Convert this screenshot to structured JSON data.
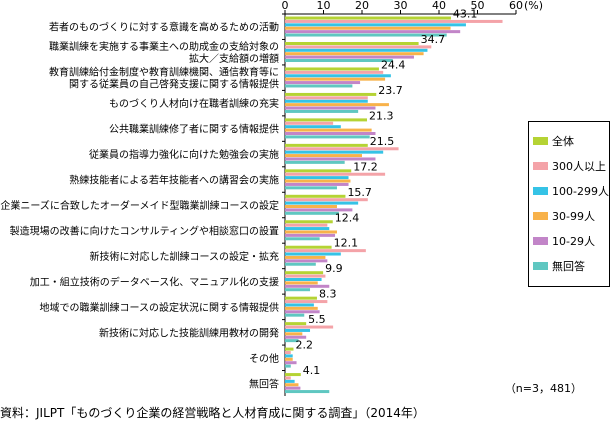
{
  "chart_data": {
    "type": "bar",
    "orientation": "horizontal",
    "categories": [
      "若者のものづくりに対する意識を高めるための活動",
      "職業訓練を実施する事業主への助成金の支給対象の\n拡大／支給額の増額",
      "教育訓練給付金制度や教育訓練機関、通信教育等に\n関する従業員の自己啓発支援に関する情報提供",
      "ものづくり人材向け在職者訓練の充実",
      "公共職業訓練修了者に関する情報提供",
      "従業員の指導力強化に向けた勉強会の実施",
      "熟練技能者による若年技能者への講習会の実施",
      "企業ニーズに合致したオーダーメイド型職業訓練コースの設定",
      "製造現場の改善に向けたコンサルティングや相談窓口の設置",
      "新技術に対応した訓練コースの設定・拡充",
      "加工・組立技術のデータベース化、マニュアル化の支援",
      "地域での職業訓練コースの設定状況に関する情報提供",
      "新技術に対応した技能訓練用教材の開発",
      "その他",
      "無回答"
    ],
    "series": [
      {
        "name": "全体",
        "color": "#b5d334",
        "values": [
          43.1,
          34.7,
          24.4,
          23.7,
          21.3,
          21.5,
          17.2,
          15.7,
          12.4,
          12.1,
          9.9,
          8.3,
          5.5,
          2.2,
          4.1
        ]
      },
      {
        "name": "300人以上",
        "color": "#f4a3a8",
        "values": [
          56.5,
          38.0,
          25.5,
          21.5,
          12.5,
          29.5,
          26.0,
          21.5,
          11.0,
          21.0,
          10.5,
          11.0,
          12.5,
          1.5,
          1.5
        ]
      },
      {
        "name": "100-299人",
        "color": "#35c3e6",
        "values": [
          47.0,
          37.0,
          27.5,
          21.5,
          14.5,
          25.5,
          16.5,
          19.0,
          11.5,
          14.5,
          9.5,
          7.5,
          6.5,
          2.0,
          2.5
        ]
      },
      {
        "name": "30-99人",
        "color": "#f8b24a",
        "values": [
          43.0,
          36.0,
          26.0,
          27.0,
          22.5,
          20.0,
          17.0,
          13.5,
          13.5,
          10.5,
          8.5,
          8.5,
          4.5,
          2.0,
          3.5
        ]
      },
      {
        "name": "10-29人",
        "color": "#c285c8",
        "values": [
          45.5,
          33.5,
          19.5,
          23.5,
          23.5,
          23.5,
          16.5,
          17.5,
          13.0,
          11.0,
          11.5,
          9.0,
          5.5,
          3.0,
          4.0
        ]
      },
      {
        "name": "無回答",
        "color": "#5fc7c1",
        "values": [
          42.0,
          28.0,
          17.5,
          19.0,
          22.0,
          15.5,
          13.5,
          14.0,
          9.0,
          8.0,
          6.5,
          5.0,
          3.5,
          1.5,
          11.5
        ]
      }
    ],
    "data_labels": [
      "43.1",
      "34.7",
      "24.4",
      "23.7",
      "21.3",
      "21.5",
      "17.2",
      "15.7",
      "12.4",
      "12.1",
      "9.9",
      "8.3",
      "5.5",
      "2.2",
      "4.1"
    ],
    "xlim": [
      0,
      60
    ],
    "xticks": [
      "0",
      "10",
      "20",
      "30",
      "40",
      "50",
      "60"
    ],
    "x_unit": "(%)",
    "legend_position": "right",
    "note": "（n=3，481）",
    "source": "資料：JILPT「ものづくり企業の経営戦略と人材育成に関する調査」（2014年）"
  }
}
